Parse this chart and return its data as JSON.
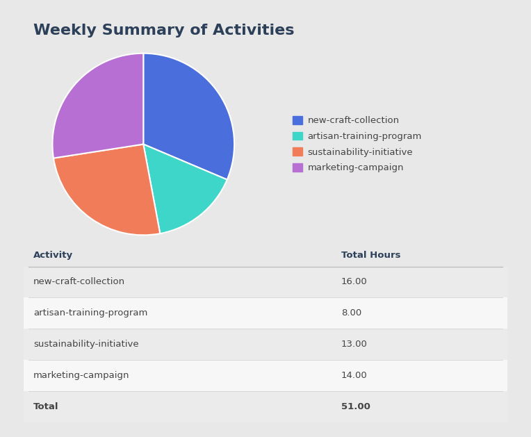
{
  "title": "Weekly Summary of Activities",
  "activities": [
    "new-craft-collection",
    "artisan-training-program",
    "sustainability-initiative",
    "marketing-campaign"
  ],
  "hours": [
    16.0,
    8.0,
    13.0,
    14.0
  ],
  "total": 51.0,
  "colors": [
    "#4a6fdc",
    "#3dd6c8",
    "#f07c5a",
    "#b76fd4"
  ],
  "legend_labels": [
    "new-craft-collection",
    "artisan-training-program",
    "sustainability-initiative",
    "marketing-campaign"
  ],
  "background_color": "#e8e8e8",
  "card_color": "#f7f7f7",
  "title_color": "#2d4059",
  "table_header_color": "#2d4059",
  "table_row_odd_color": "#ebebeb",
  "table_row_even_color": "#f7f7f7",
  "table_text_color": "#444444",
  "title_fontsize": 16,
  "legend_fontsize": 9.5,
  "table_fontsize": 9.5
}
